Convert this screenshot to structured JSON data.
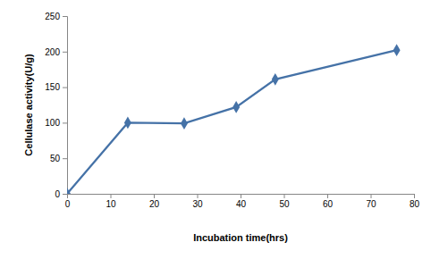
{
  "chart_data": {
    "type": "line",
    "x": [
      0,
      14,
      27,
      39,
      48,
      76
    ],
    "values": [
      0,
      100,
      99,
      122,
      161,
      202
    ],
    "color": "#4572a7",
    "marker": "diamond",
    "line_style": "solid",
    "xlabel": "Incubation time(hrs)",
    "ylabel": "Cellulase activity(U/g)",
    "xlim": [
      0,
      80
    ],
    "xticks": [
      0,
      10,
      20,
      30,
      40,
      50,
      60,
      70,
      80
    ],
    "ylim": [
      0,
      250
    ],
    "yticks": [
      0,
      50,
      100,
      150,
      200,
      250
    ],
    "grid": false
  }
}
